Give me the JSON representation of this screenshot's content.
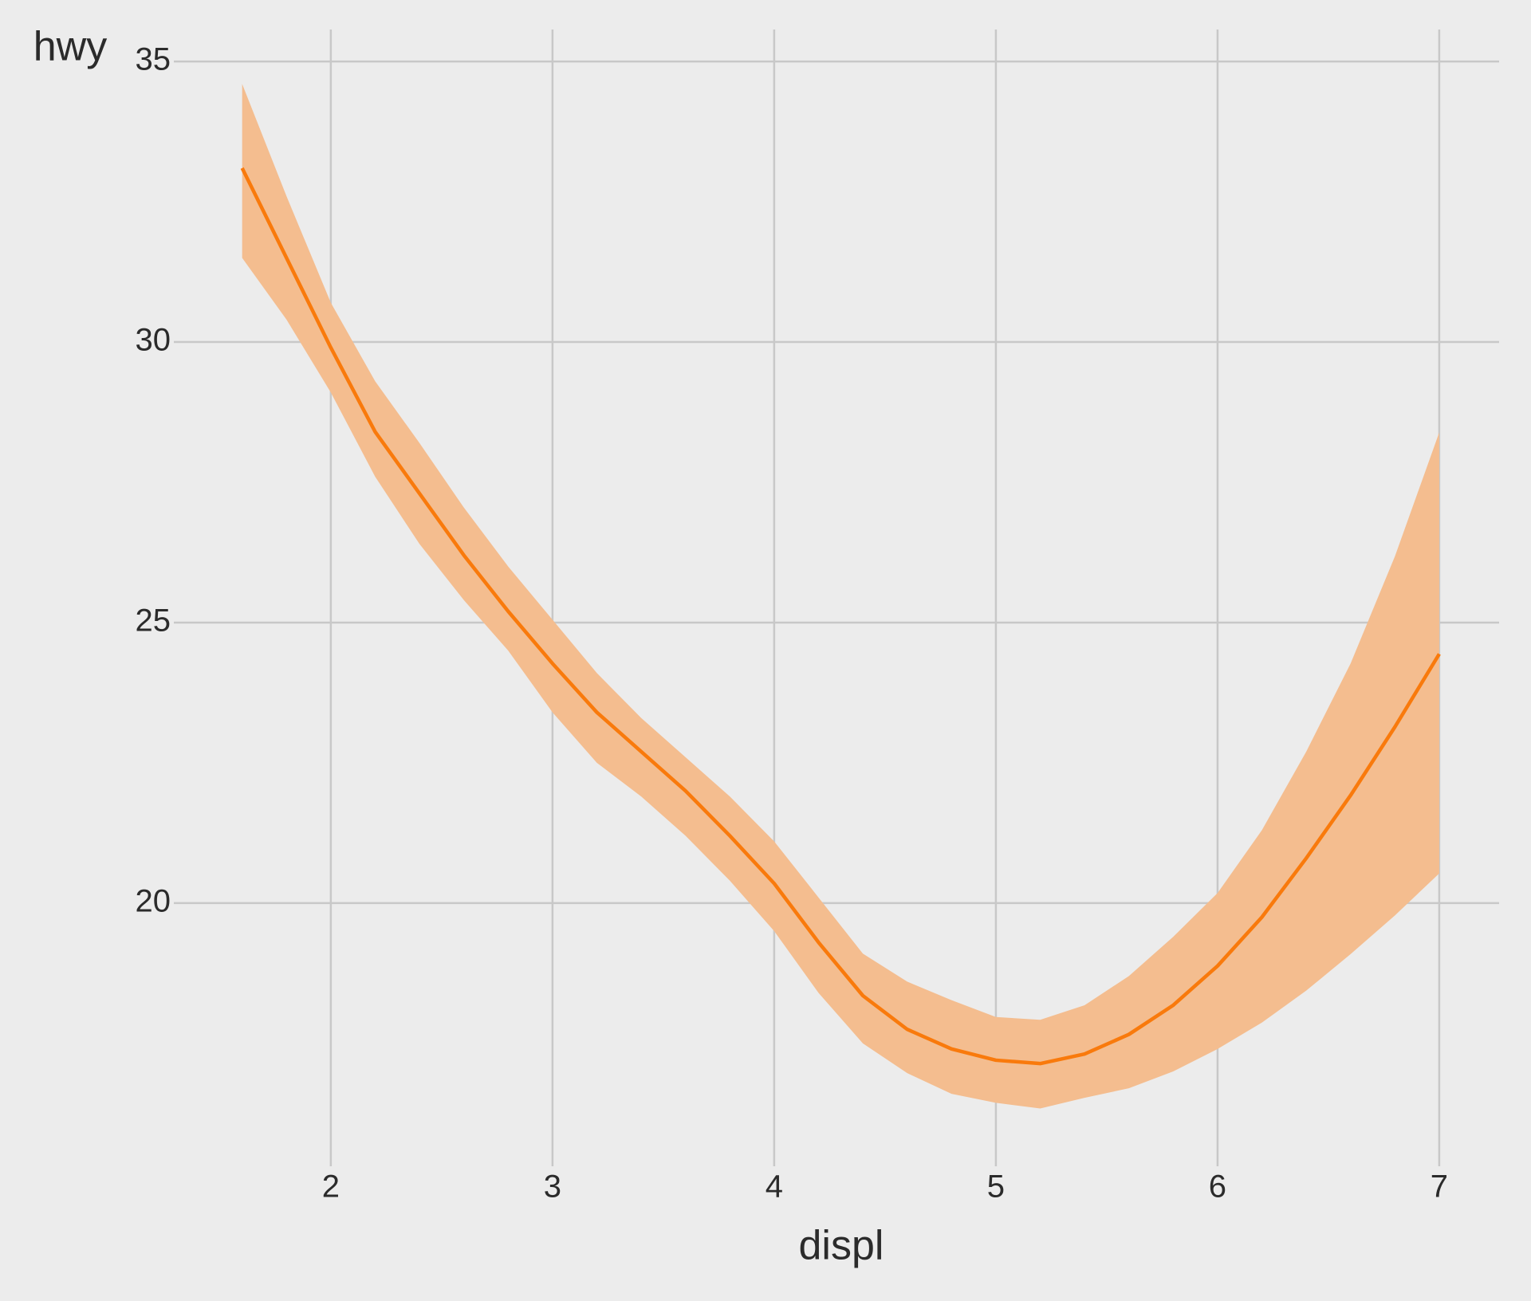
{
  "chart_data": {
    "type": "line",
    "xlabel": "displ",
    "ylabel": "hwy",
    "x": [
      1.6,
      1.8,
      2.0,
      2.2,
      2.4,
      2.6,
      2.8,
      3.0,
      3.2,
      3.4,
      3.6,
      3.8,
      4.0,
      4.2,
      4.4,
      4.6,
      4.8,
      5.0,
      5.2,
      5.4,
      5.6,
      5.8,
      6.0,
      6.2,
      6.4,
      6.6,
      6.8,
      7.0
    ],
    "series": [
      {
        "color": "#f97a0c",
        "band_color": "#f4bd8f",
        "values": [
          33.1,
          31.5,
          29.9,
          28.4,
          27.3,
          26.2,
          25.2,
          24.27,
          23.4,
          22.7,
          22.0,
          21.2,
          20.35,
          19.3,
          18.35,
          17.75,
          17.4,
          17.2,
          17.14,
          17.31,
          17.66,
          18.18,
          18.88,
          19.75,
          20.8,
          21.92,
          23.14,
          24.44
        ],
        "upper": [
          34.6,
          32.6,
          30.7,
          29.3,
          28.2,
          27.05,
          26.0,
          25.05,
          24.1,
          23.3,
          22.6,
          21.9,
          21.1,
          20.1,
          19.1,
          18.6,
          18.27,
          17.97,
          17.92,
          18.18,
          18.7,
          19.4,
          20.18,
          21.3,
          22.7,
          24.27,
          26.18,
          28.39
        ],
        "lower": [
          31.5,
          30.4,
          29.1,
          27.6,
          26.4,
          25.4,
          24.5,
          23.4,
          22.5,
          21.9,
          21.2,
          20.4,
          19.5,
          18.4,
          17.5,
          16.97,
          16.6,
          16.44,
          16.34,
          16.53,
          16.7,
          17.0,
          17.4,
          17.87,
          18.44,
          19.09,
          19.78,
          20.53
        ]
      }
    ],
    "xlim": [
      1.335,
      7.27
    ],
    "xticks": [
      2,
      3,
      4,
      5,
      6,
      7
    ],
    "ylim": [
      15.48,
      35.57
    ],
    "yticks": [
      20,
      25,
      30,
      35
    ],
    "grid": true
  }
}
